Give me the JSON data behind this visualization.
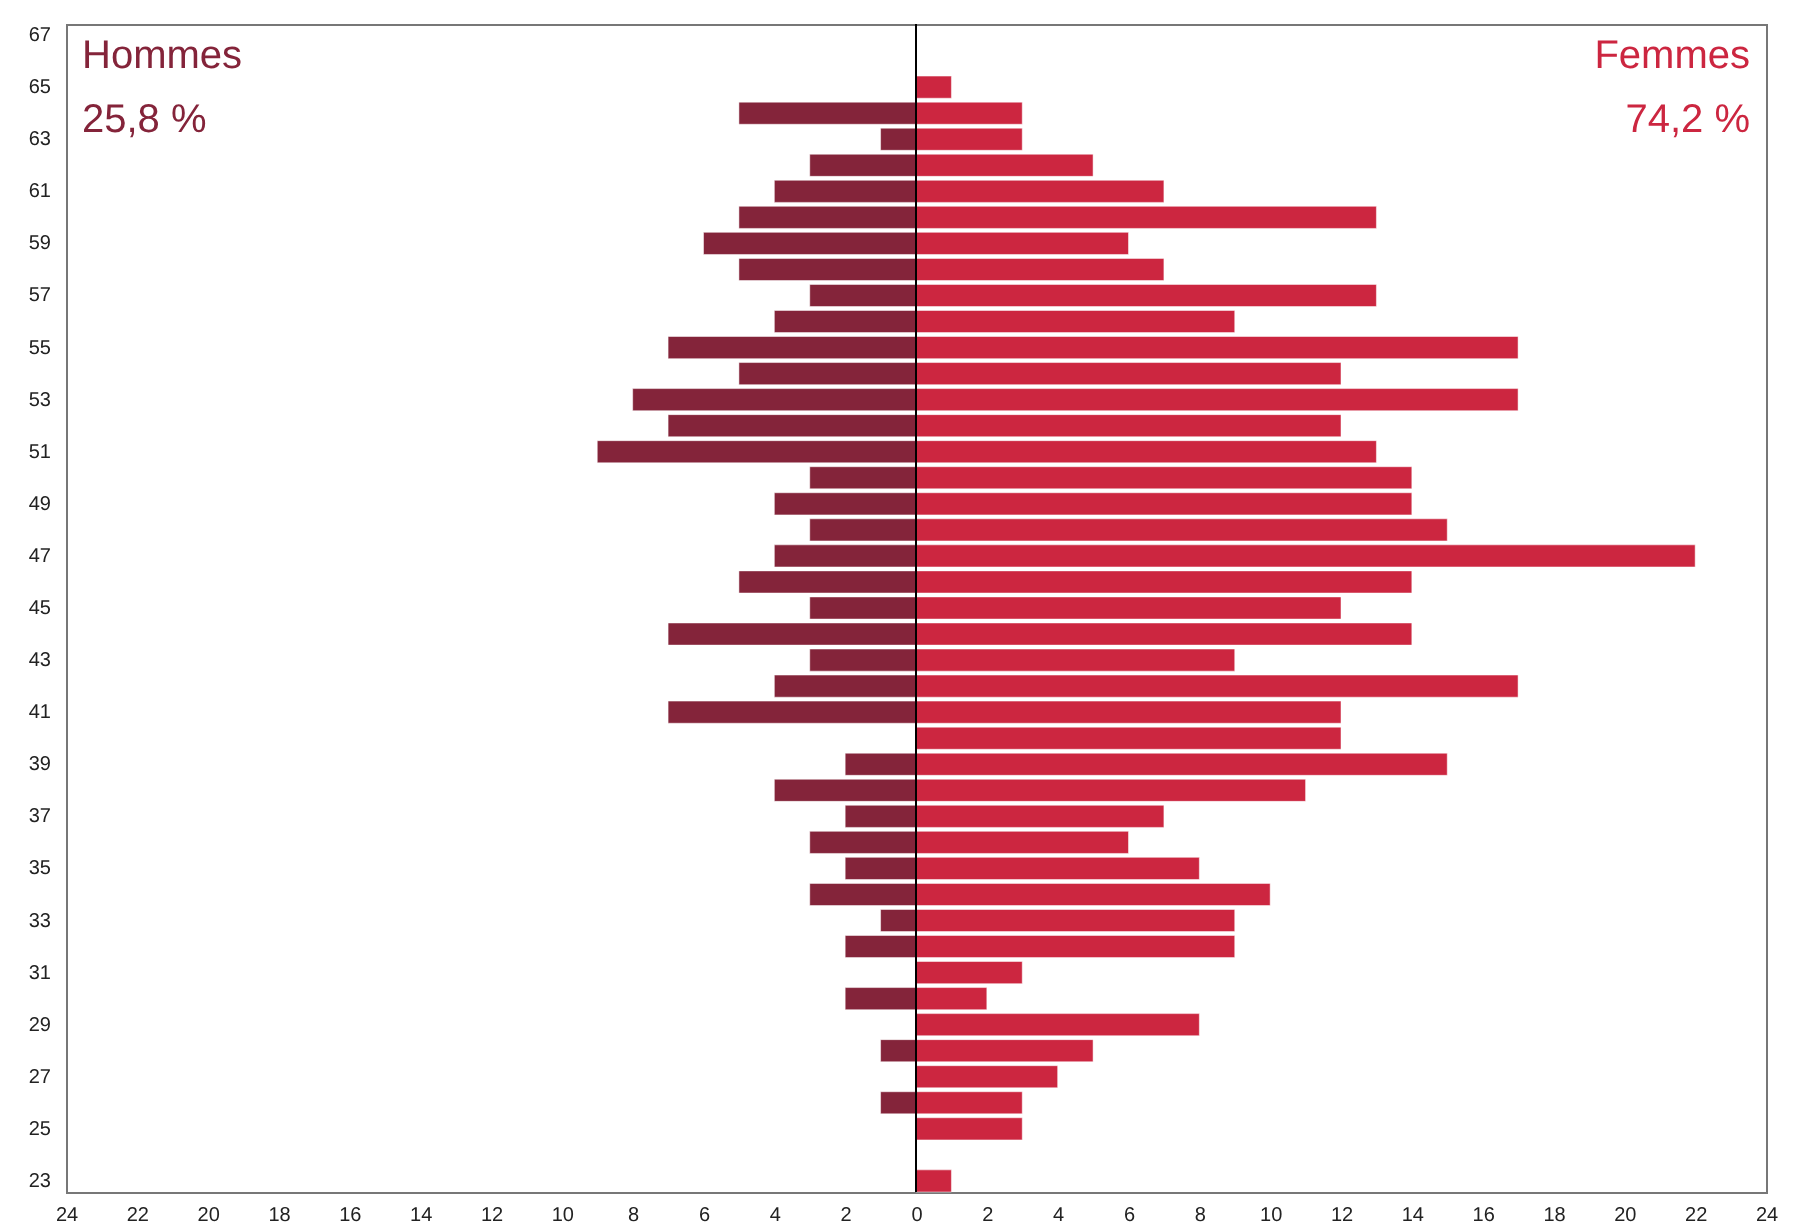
{
  "chart_data": {
    "type": "bar",
    "orientation": "horizontal",
    "stacked": true,
    "categories": [
      "67",
      null,
      "65",
      null,
      "63",
      null,
      "61",
      null,
      "59",
      null,
      "57",
      null,
      "55",
      null,
      "53",
      null,
      "51",
      null,
      "49",
      null,
      "47",
      null,
      "45",
      null,
      "43",
      null,
      "41",
      null,
      "39",
      null,
      "37",
      null,
      "35",
      null,
      "33",
      null,
      "31",
      null,
      "29",
      null,
      "27",
      null,
      "25",
      null,
      "23"
    ],
    "series": [
      {
        "name": "Hommes",
        "color": "#84243a",
        "values": [
          null,
          null,
          null,
          -5,
          -1,
          -3,
          -4,
          -5,
          -6,
          -5,
          -3,
          -4,
          -7,
          -5,
          -8,
          -7,
          -9,
          -3,
          -4,
          -3,
          -4,
          -5,
          -3,
          -7,
          -3,
          -4,
          -7,
          null,
          -2,
          -4,
          -2,
          -3,
          -2,
          -3,
          -1,
          -2,
          null,
          -2,
          null,
          -1,
          null,
          -1,
          null,
          null,
          null
        ]
      },
      {
        "name": "Femmes",
        "color": "#cc2640",
        "values": [
          null,
          null,
          1,
          3,
          3,
          5,
          7,
          13,
          6,
          7,
          13,
          9,
          17,
          12,
          17,
          12,
          13,
          14,
          14,
          15,
          22,
          14,
          12,
          14,
          9,
          17,
          12,
          12,
          15,
          11,
          7,
          6,
          8,
          10,
          9,
          9,
          3,
          2,
          8,
          5,
          4,
          3,
          3,
          null,
          1
        ]
      }
    ],
    "xlim": [
      -24,
      24
    ],
    "xticks": [
      {
        "value": -24,
        "label": "24"
      },
      {
        "value": -22,
        "label": "22"
      },
      {
        "value": -20,
        "label": "20"
      },
      {
        "value": -18,
        "label": "18"
      },
      {
        "value": -16,
        "label": "16"
      },
      {
        "value": -14,
        "label": "14"
      },
      {
        "value": -12,
        "label": "12"
      },
      {
        "value": -10,
        "label": "10"
      },
      {
        "value": -8,
        "label": "8"
      },
      {
        "value": -6,
        "label": "6"
      },
      {
        "value": -4,
        "label": "4"
      },
      {
        "value": -2,
        "label": "2"
      },
      0,
      2,
      4,
      6,
      8,
      10,
      12,
      14,
      16,
      18,
      20,
      22,
      24
    ],
    "ref_lines": [
      {
        "axis": "x",
        "value": 0,
        "color": "#000000"
      }
    ],
    "annotations": [
      "25,8 %",
      "74,2 %"
    ],
    "grid": false
  }
}
